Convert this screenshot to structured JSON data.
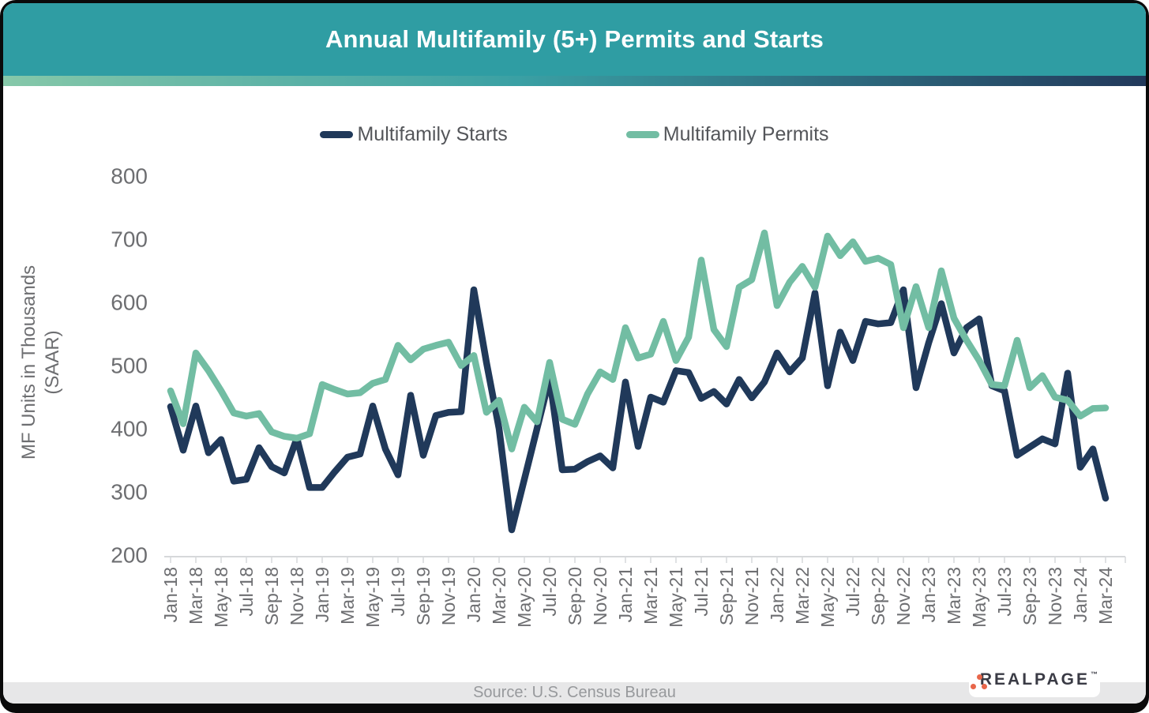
{
  "title": "Annual Multifamily (5+) Permits and Starts",
  "source": "Source: U.S. Census Bureau",
  "logo": {
    "text": "REALPAGE",
    "mark": "™",
    "dot_color": "#e8664a",
    "text_color": "#3a3b45"
  },
  "colors": {
    "header": "#2f9da3",
    "gradient": [
      "#86c8a9",
      "#3aa0a4",
      "#22395b"
    ],
    "starts_line": "#20395a",
    "permits_line": "#72bda3",
    "axis": "#d6d8da",
    "tick_text": "#6d6e71"
  },
  "y_axis": {
    "title_line1": "MF Units in Thousands",
    "title_line2": "(SAAR)"
  },
  "chart_data": {
    "type": "line",
    "title": "Annual Multifamily (5+) Permits and Starts",
    "ylabel": "MF Units in Thousands (SAAR)",
    "xlabel": "",
    "ylim": [
      200,
      800
    ],
    "yticks": [
      200,
      300,
      400,
      500,
      600,
      700,
      800
    ],
    "grid": false,
    "legend_position": "top",
    "x_label_every": 2,
    "x": [
      "Jan-18",
      "Feb-18",
      "Mar-18",
      "Apr-18",
      "May-18",
      "Jun-18",
      "Jul-18",
      "Aug-18",
      "Sep-18",
      "Oct-18",
      "Nov-18",
      "Dec-18",
      "Jan-19",
      "Feb-19",
      "Mar-19",
      "Apr-19",
      "May-19",
      "Jun-19",
      "Jul-19",
      "Aug-19",
      "Sep-19",
      "Oct-19",
      "Nov-19",
      "Dec-19",
      "Jan-20",
      "Feb-20",
      "Mar-20",
      "Apr-20",
      "May-20",
      "Jun-20",
      "Jul-20",
      "Aug-20",
      "Sep-20",
      "Oct-20",
      "Nov-20",
      "Dec-20",
      "Jan-21",
      "Feb-21",
      "Mar-21",
      "Apr-21",
      "May-21",
      "Jun-21",
      "Jul-21",
      "Aug-21",
      "Sep-21",
      "Oct-21",
      "Nov-21",
      "Dec-21",
      "Jan-22",
      "Feb-22",
      "Mar-22",
      "Apr-22",
      "May-22",
      "Jun-22",
      "Jul-22",
      "Aug-22",
      "Sep-22",
      "Oct-22",
      "Nov-22",
      "Dec-22",
      "Jan-23",
      "Feb-23",
      "Mar-23",
      "Apr-23",
      "May-23",
      "Jun-23",
      "Jul-23",
      "Aug-23",
      "Sep-23",
      "Oct-23",
      "Nov-23",
      "Dec-23",
      "Jan-24",
      "Feb-24",
      "Mar-24"
    ],
    "series": [
      {
        "name": "Multifamily Starts",
        "color": "#20395a",
        "values": [
          435,
          366,
          436,
          362,
          383,
          317,
          320,
          370,
          340,
          330,
          385,
          307,
          307,
          332,
          355,
          360,
          436,
          368,
          327,
          453,
          358,
          421,
          426,
          427,
          620,
          505,
          400,
          240,
          320,
          400,
          480,
          335,
          336,
          348,
          357,
          338,
          474,
          372,
          450,
          442,
          492,
          489,
          448,
          459,
          439,
          478,
          449,
          474,
          520,
          490,
          512,
          615,
          468,
          553,
          508,
          570,
          566,
          568,
          620,
          465,
          536,
          598,
          520,
          560,
          574,
          468,
          460,
          358,
          371,
          384,
          376,
          488,
          339,
          368,
          290
        ]
      },
      {
        "name": "Multifamily Permits",
        "color": "#72bda3",
        "values": [
          460,
          408,
          520,
          492,
          460,
          425,
          420,
          424,
          395,
          388,
          385,
          392,
          470,
          462,
          455,
          457,
          472,
          478,
          532,
          509,
          526,
          532,
          537,
          500,
          516,
          426,
          445,
          368,
          434,
          411,
          505,
          415,
          407,
          455,
          490,
          478,
          560,
          512,
          518,
          570,
          508,
          545,
          667,
          557,
          530,
          624,
          636,
          710,
          595,
          632,
          657,
          624,
          705,
          674,
          696,
          665,
          670,
          660,
          560,
          625,
          560,
          650,
          575,
          540,
          508,
          470,
          468,
          540,
          465,
          484,
          450,
          445,
          420,
          432,
          433
        ]
      }
    ]
  }
}
